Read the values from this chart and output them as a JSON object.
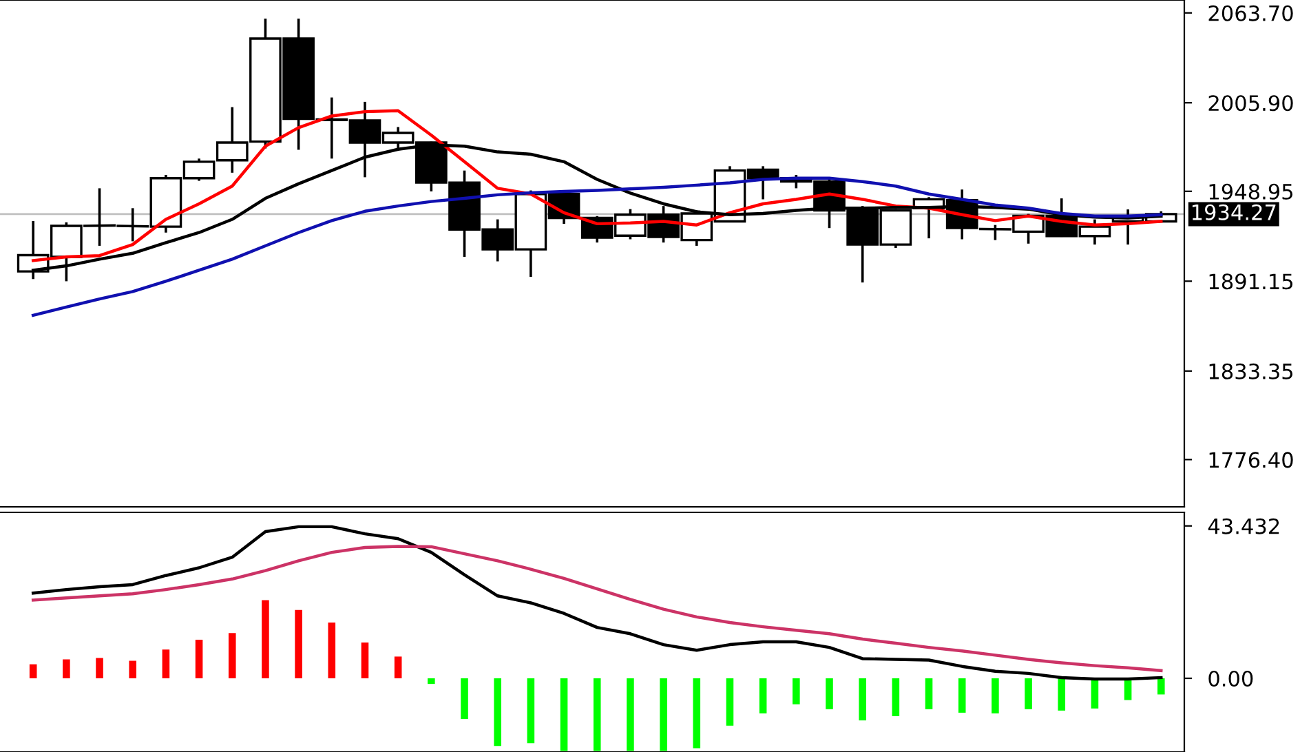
{
  "chart_data": [
    {
      "type": "candlestick",
      "categories": [
        null,
        null,
        null,
        null,
        null,
        null,
        null,
        null,
        null,
        null,
        null,
        null,
        null,
        null,
        null,
        null,
        null,
        null,
        null,
        null,
        null,
        null,
        null,
        null,
        null,
        null,
        null,
        null,
        null,
        null,
        null,
        null,
        null,
        null,
        null
      ],
      "ohlc": [
        [
          1897.4,
          1929.8,
          1892.5,
          1907.9
        ],
        [
          1906.8,
          1929.0,
          1891.1,
          1926.7
        ],
        [
          1926.7,
          1950.9,
          1913.9,
          1927.0
        ],
        [
          1926.7,
          1938.1,
          1916.8,
          1926.4
        ],
        [
          1926.2,
          1959.5,
          1922.4,
          1957.4
        ],
        [
          1957.4,
          1970.0,
          1955.7,
          1968.0
        ],
        [
          1968.9,
          2003.1,
          1960.9,
          1980.3
        ],
        [
          1980.9,
          2060.0,
          1976.6,
          2047.2
        ],
        [
          2047.2,
          2060.0,
          1975.7,
          1995.6
        ],
        [
          1995.2,
          2009.3,
          1970.0,
          1994.8
        ],
        [
          1994.5,
          2006.5,
          1958.0,
          1980.3
        ],
        [
          1980.3,
          1990.3,
          1976.6,
          1986.5
        ],
        [
          1980.3,
          1980.9,
          1948.9,
          1954.6
        ],
        [
          1954.6,
          1962.3,
          1906.8,
          1924.4
        ],
        [
          1924.4,
          1930.9,
          1903.9,
          1911.6
        ],
        [
          1911.6,
          1949.5,
          1893.9,
          1947.2
        ],
        [
          1947.2,
          1949.0,
          1928.0,
          1931.8
        ],
        [
          1931.8,
          1933.0,
          1916.0,
          1919.1
        ],
        [
          1920.4,
          1937.5,
          1918.1,
          1933.9
        ],
        [
          1933.9,
          1939.5,
          1916.0,
          1919.6
        ],
        [
          1917.6,
          1936.7,
          1913.9,
          1934.7
        ],
        [
          1929.6,
          1965.1,
          1929.0,
          1962.3
        ],
        [
          1962.9,
          1965.1,
          1943.8,
          1957.4
        ],
        [
          1957.4,
          1959.5,
          1950.9,
          1955.2
        ],
        [
          1955.2,
          1958.0,
          1925.3,
          1936.7
        ],
        [
          1936.7,
          1939.5,
          1890.3,
          1914.7
        ],
        [
          1914.7,
          1937.5,
          1912.5,
          1936.7
        ],
        [
          1938.1,
          1945.2,
          1918.7,
          1943.8
        ],
        [
          1943.2,
          1950.1,
          1918.1,
          1925.3
        ],
        [
          1924.7,
          1927.3,
          1917.6,
          1924.5
        ],
        [
          1923.0,
          1934.4,
          1915.3,
          1933.2
        ],
        [
          1933.2,
          1944.4,
          1919.6,
          1920.2
        ],
        [
          1920.2,
          1930.9,
          1914.7,
          1926.2
        ],
        [
          1929.6,
          1937.3,
          1914.7,
          1932.4
        ],
        [
          1929.6,
          1936.1,
          1929.0,
          1934.27
        ]
      ],
      "series": [
        {
          "type": "line",
          "color": "#ff0000",
          "values": [
            1904.4,
            1906.8,
            1907.6,
            1914.7,
            1930.9,
            1940.9,
            1952.3,
            1978.0,
            1989.9,
            1997.4,
            2000.2,
            2000.8,
            1985.1,
            1968.0,
            1950.9,
            1947.2,
            1935.2,
            1928.1,
            1928.6,
            1929.6,
            1927.3,
            1935.2,
            1940.9,
            1943.8,
            1947.2,
            1943.8,
            1939.5,
            1938.1,
            1933.9,
            1930.1,
            1933.0,
            1929.6,
            1927.3,
            1928.1,
            1929.6
          ]
        },
        {
          "type": "line",
          "color": "#000000",
          "values": [
            1898.2,
            1901.0,
            1905.3,
            1909.1,
            1915.9,
            1922.4,
            1930.9,
            1944.4,
            1953.8,
            1962.3,
            1970.9,
            1976.0,
            1978.8,
            1978.0,
            1974.3,
            1972.8,
            1968.0,
            1956.6,
            1947.8,
            1940.9,
            1935.8,
            1933.9,
            1934.7,
            1936.7,
            1938.1,
            1938.1,
            1938.6,
            1938.6,
            1939.2,
            1938.6,
            1937.5,
            1933.9,
            1932.4,
            1931.8,
            1933.0
          ]
        },
        {
          "type": "line",
          "color": "#1010b0",
          "values": [
            1869.2,
            1874.5,
            1879.7,
            1884.5,
            1891.1,
            1898.2,
            1905.3,
            1913.9,
            1922.4,
            1930.1,
            1936.1,
            1939.5,
            1942.4,
            1944.4,
            1946.7,
            1948.0,
            1948.9,
            1949.5,
            1950.5,
            1951.5,
            1952.9,
            1954.4,
            1956.6,
            1957.4,
            1957.4,
            1955.2,
            1952.3,
            1947.2,
            1943.8,
            1940.1,
            1938.1,
            1934.7,
            1933.0,
            1933.0,
            1933.9
          ]
        }
      ],
      "ylim": [
        1746,
        2072
      ],
      "yticks": [
        {
          "value": 2063.7,
          "label": "2063.70"
        },
        {
          "value": 2005.9,
          "label": "2005.90"
        },
        1948.95,
        1891.15,
        1833.35,
        {
          "value": 1776.4,
          "label": "1776.40"
        }
      ],
      "ref_lines": [
        {
          "axis": "y",
          "value": 1934.27,
          "label": "1934.27",
          "color": "#c0c0c0"
        }
      ],
      "tick_labels": "y",
      "grid": false,
      "legend": false
    },
    {
      "type": "bar",
      "categories": [
        null,
        null,
        null,
        null,
        null,
        null,
        null,
        null,
        null,
        null,
        null,
        null,
        null,
        null,
        null,
        null,
        null,
        null,
        null,
        null,
        null,
        null,
        null,
        null,
        null,
        null,
        null,
        null,
        null,
        null,
        null,
        null,
        null,
        null,
        null
      ],
      "series": [
        {
          "type": "bar",
          "values": [
            4.0,
            5.4,
            5.8,
            5.0,
            8.2,
            11.0,
            12.9,
            22.3,
            19.5,
            15.9,
            10.2,
            6.2,
            -1.6,
            -11.6,
            -19.3,
            -18.5,
            -20.7,
            -20.7,
            -20.7,
            -20.7,
            -19.9,
            -13.5,
            -10.0,
            -7.4,
            -8.8,
            -12.0,
            -10.8,
            -8.8,
            -9.8,
            -10.0,
            -8.8,
            -9.2,
            -8.6,
            -6.2,
            -4.6
          ],
          "colors": [
            "#ff0000",
            "#ff0000",
            "#ff0000",
            "#ff0000",
            "#ff0000",
            "#ff0000",
            "#ff0000",
            "#ff0000",
            "#ff0000",
            "#ff0000",
            "#ff0000",
            "#ff0000",
            "#00ff00",
            "#00ff00",
            "#00ff00",
            "#00ff00",
            "#00ff00",
            "#00ff00",
            "#00ff00",
            "#00ff00",
            "#00ff00",
            "#00ff00",
            "#00ff00",
            "#00ff00",
            "#00ff00",
            "#00ff00",
            "#00ff00",
            "#00ff00",
            "#00ff00",
            "#00ff00",
            "#00ff00",
            "#00ff00",
            "#00ff00",
            "#00ff00",
            "#00ff00"
          ]
        },
        {
          "type": "line",
          "color": "#000000",
          "values": [
            24.3,
            25.3,
            26.1,
            26.7,
            29.3,
            31.5,
            34.5,
            41.8,
            43.2,
            43.2,
            41.2,
            39.8,
            35.9,
            29.5,
            23.5,
            21.5,
            18.5,
            14.5,
            12.7,
            9.6,
            8.0,
            9.6,
            10.4,
            10.4,
            8.8,
            5.6,
            5.4,
            5.2,
            3.4,
            2.0,
            1.4,
            0.2,
            -0.2,
            -0.2,
            0.2
          ]
        },
        {
          "type": "line",
          "color": "#cc3366",
          "values": [
            22.3,
            22.9,
            23.5,
            24.1,
            25.3,
            26.7,
            28.3,
            30.7,
            33.5,
            35.9,
            37.3,
            37.6,
            37.5,
            35.5,
            33.5,
            31.1,
            28.5,
            25.5,
            22.5,
            19.7,
            17.5,
            15.9,
            14.7,
            13.7,
            12.7,
            11.2,
            10.0,
            8.8,
            7.8,
            6.6,
            5.4,
            4.4,
            3.6,
            3.0,
            2.2
          ]
        }
      ],
      "ylim": [
        -21,
        47.3
      ],
      "yticks": [
        {
          "value": 0,
          "label": "0.00"
        },
        43.432
      ],
      "tick_labels": "y",
      "grid": false,
      "legend": false
    }
  ]
}
